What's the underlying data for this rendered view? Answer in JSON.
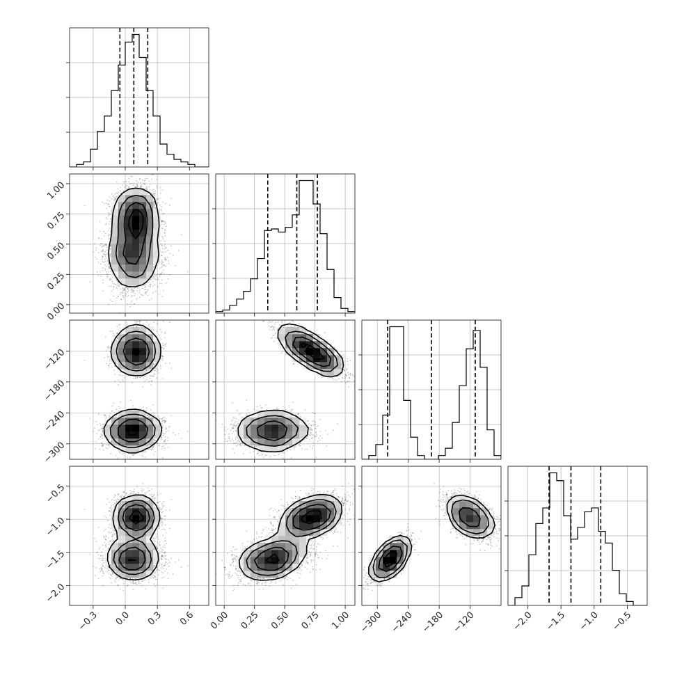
{
  "chart_data": {
    "type": "corner",
    "title": "",
    "parameter_labels": [
      "",
      "",
      "",
      ""
    ],
    "grid": true,
    "colors": {
      "line": "#000000",
      "frame": "#262626",
      "grid": "#b0b0b0",
      "background": "#ffffff"
    },
    "parameters": [
      {
        "name": "",
        "range": [
          -0.52,
          0.78
        ],
        "ticks": [
          -0.3,
          0.0,
          0.3,
          0.6
        ],
        "tick_labels": [
          "−0.3",
          "0.0",
          "0.3",
          "0.6"
        ],
        "quantiles": [
          -0.05,
          0.08,
          0.21
        ],
        "hist": {
          "edges": [
            -0.52,
            -0.455,
            -0.39,
            -0.325,
            -0.26,
            -0.195,
            -0.13,
            -0.065,
            0.0,
            0.065,
            0.13,
            0.195,
            0.26,
            0.325,
            0.39,
            0.455,
            0.52,
            0.585,
            0.65,
            0.715,
            0.78
          ],
          "counts": [
            0,
            1,
            2,
            7,
            14,
            20,
            30,
            40,
            49,
            52,
            43,
            30,
            20,
            9,
            5,
            3,
            2,
            1,
            0,
            0
          ]
        }
      },
      {
        "name": "",
        "range": [
          -0.07,
          1.08
        ],
        "ticks": [
          0.0,
          0.25,
          0.5,
          0.75,
          1.0
        ],
        "tick_labels": [
          "0.00",
          "0.25",
          "0.50",
          "0.75",
          "1.00"
        ],
        "quantiles": [
          0.36,
          0.6,
          0.77
        ],
        "hist": {
          "edges": [
            -0.07,
            -0.0125,
            0.045,
            0.1025,
            0.16,
            0.2175,
            0.275,
            0.3325,
            0.39,
            0.4475,
            0.505,
            0.5625,
            0.62,
            0.6775,
            0.735,
            0.7925,
            0.85,
            0.9075,
            0.965,
            1.0225,
            1.08
          ],
          "counts": [
            1,
            2,
            5,
            9,
            14,
            22,
            35,
            53,
            54,
            52,
            55,
            63,
            85,
            85,
            70,
            51,
            28,
            10,
            3,
            1
          ]
        }
      },
      {
        "name": "",
        "range": [
          -330,
          -60
        ],
        "ticks": [
          -300,
          -240,
          -180,
          -120
        ],
        "tick_labels": [
          "−300",
          "−240",
          "−180",
          "−120"
        ],
        "quantiles": [
          -280,
          -195,
          -110
        ],
        "hist": {
          "edges": [
            -330,
            -316.5,
            -303,
            -289.5,
            -276,
            -262.5,
            -249,
            -235.5,
            -222,
            -208.5,
            -195,
            -181.5,
            -168,
            -154.5,
            -141,
            -127.5,
            -114,
            -100.5,
            -87,
            -73.5,
            -60
          ],
          "counts": [
            0,
            1,
            4,
            12,
            36,
            36,
            16,
            6,
            1,
            0,
            0,
            1,
            3,
            10,
            20,
            30,
            35,
            25,
            8,
            1
          ]
        }
      },
      {
        "name": "",
        "range": [
          -2.3,
          -0.2
        ],
        "ticks": [
          -2.0,
          -1.5,
          -1.0,
          -0.5
        ],
        "tick_labels": [
          "−2.0",
          "−1.5",
          "−1.0",
          "−0.5"
        ],
        "quantiles": [
          -1.68,
          -1.35,
          -0.9
        ],
        "hist": {
          "edges": [
            -2.3,
            -2.195,
            -2.09,
            -1.985,
            -1.88,
            -1.775,
            -1.67,
            -1.565,
            -1.46,
            -1.355,
            -1.25,
            -1.145,
            -1.04,
            -0.935,
            -0.83,
            -0.725,
            -0.62,
            -0.515,
            -0.41,
            -0.305,
            -0.2
          ],
          "counts": [
            0,
            2,
            5,
            13,
            21,
            25,
            34,
            32,
            23,
            17,
            20,
            24,
            25,
            19,
            16,
            9,
            3,
            1,
            0,
            0
          ]
        }
      }
    ],
    "sample_clusters": [
      {
        "weight": 0.5,
        "mean": [
          0.1,
          0.72,
          -120,
          -0.97
        ],
        "sd": [
          0.1,
          0.13,
          22,
          0.15
        ],
        "corr": [
          [
            1,
            0,
            0,
            0
          ],
          [
            0,
            1,
            -0.8,
            0.4
          ],
          [
            0,
            -0.8,
            1,
            -0.5
          ],
          [
            0,
            0.4,
            -0.5,
            1
          ]
        ]
      },
      {
        "weight": 0.5,
        "mean": [
          0.07,
          0.4,
          -275,
          -1.6
        ],
        "sd": [
          0.12,
          0.14,
          17,
          0.15
        ],
        "corr": [
          [
            1,
            0,
            0,
            0
          ],
          [
            0,
            1,
            0,
            0.3
          ],
          [
            0,
            0,
            1,
            0.7
          ],
          [
            0,
            0.3,
            0.7,
            1
          ]
        ]
      }
    ]
  }
}
